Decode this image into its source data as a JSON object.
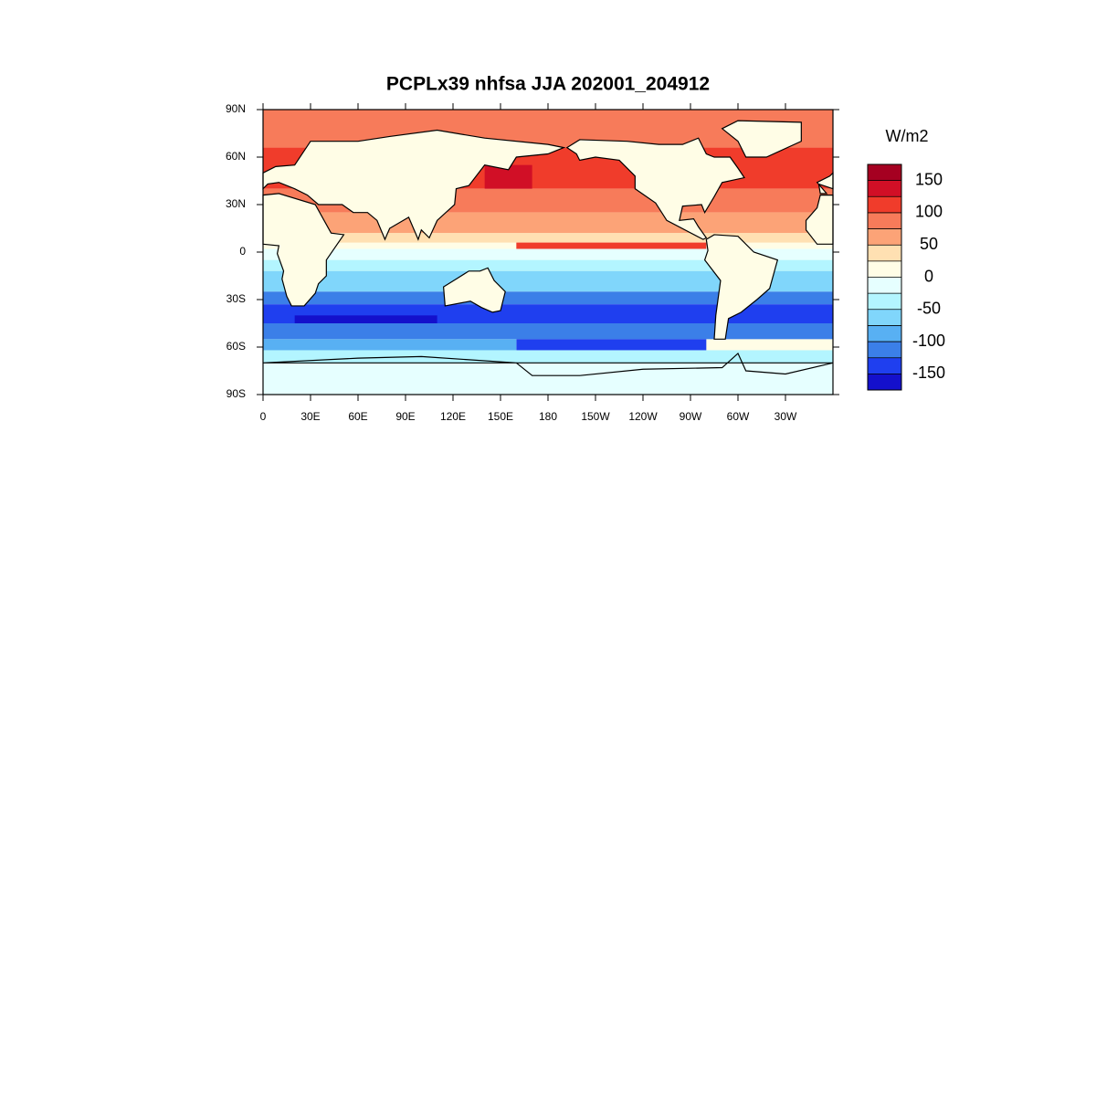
{
  "chart_data": {
    "type": "map",
    "title": "PCPLx39 nhfsa JJA 202001_204912",
    "xlim": [
      0,
      360
    ],
    "ylim": [
      -90,
      90
    ],
    "xticks": [
      0,
      {
        "value": 30,
        "label": "30E"
      },
      {
        "value": 60,
        "label": "60E"
      },
      {
        "value": 90,
        "label": "90E"
      },
      {
        "value": 120,
        "label": "120E"
      },
      {
        "value": 150,
        "label": "150E"
      },
      180,
      {
        "value": 210,
        "label": "150W"
      },
      {
        "value": 240,
        "label": "120W"
      },
      {
        "value": 270,
        "label": "90W"
      },
      {
        "value": 300,
        "label": "60W"
      },
      {
        "value": 330,
        "label": "30W"
      }
    ],
    "yticks": [
      {
        "value": 90,
        "label": "90N"
      },
      {
        "value": 60,
        "label": "60N"
      },
      {
        "value": 30,
        "label": "30N"
      },
      0,
      {
        "value": -30,
        "label": "30S"
      },
      {
        "value": -60,
        "label": "60S"
      },
      {
        "value": -90,
        "label": "90S"
      }
    ],
    "colorbar": {
      "title": "W/m2",
      "levels": [
        -150,
        -125,
        -100,
        -75,
        -50,
        -25,
        0,
        25,
        50,
        75,
        100,
        125,
        150
      ],
      "ticks": [
        150,
        100,
        50,
        0,
        -50,
        -100,
        -150
      ],
      "colors": [
        "#1410cc",
        "#1f3fef",
        "#3b7fe8",
        "#58b0f3",
        "#80d6fb",
        "#b3f5ff",
        "#e6ffff",
        "#fffde6",
        "#ffe0b2",
        "#fca377",
        "#f77b5a",
        "#f03c2b",
        "#d10f26",
        "#a50021"
      ]
    }
  }
}
